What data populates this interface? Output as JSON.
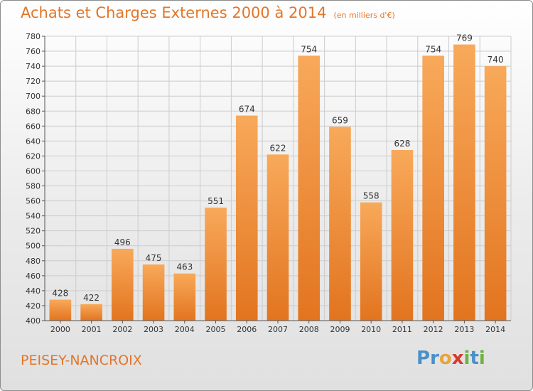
{
  "header": {
    "title": "Achats et Charges Externes 2000 à 2014",
    "subtitle": "(en milliers d'€)"
  },
  "footer": {
    "commune": "PEISEY-NANCROIX",
    "logo_letters": [
      "P",
      "r",
      "o",
      "x",
      "i",
      "t",
      "i"
    ],
    "logo_colors": [
      "#4a90c8",
      "#4a90c8",
      "#e8a33a",
      "#d8382e",
      "#6cb33f",
      "#4a90c8",
      "#6cb33f"
    ]
  },
  "colors": {
    "bar_light": "#f8a95a",
    "bar_dark": "#e2741f",
    "grid": "#cccccc",
    "title": "#e2762a"
  },
  "chart_data": {
    "type": "bar",
    "title": "Achats et Charges Externes 2000 à 2014",
    "subtitle": "(en milliers d'€)",
    "categories": [
      "2000",
      "2001",
      "2002",
      "2003",
      "2004",
      "2005",
      "2006",
      "2007",
      "2008",
      "2009",
      "2010",
      "2011",
      "2012",
      "2013",
      "2014"
    ],
    "values": [
      428,
      422,
      496,
      475,
      463,
      551,
      674,
      622,
      754,
      659,
      558,
      628,
      754,
      769,
      740
    ],
    "data_labels": [
      "428",
      "422",
      "496",
      "475",
      "463",
      "551",
      "674",
      "622",
      "754",
      "659",
      "558",
      "628",
      "754",
      "769",
      "740"
    ],
    "ylim": [
      400,
      780
    ],
    "yticks": [
      400,
      420,
      440,
      460,
      480,
      500,
      520,
      540,
      560,
      580,
      600,
      620,
      640,
      660,
      680,
      700,
      720,
      740,
      760,
      780
    ],
    "grid": true,
    "legend": "none"
  }
}
